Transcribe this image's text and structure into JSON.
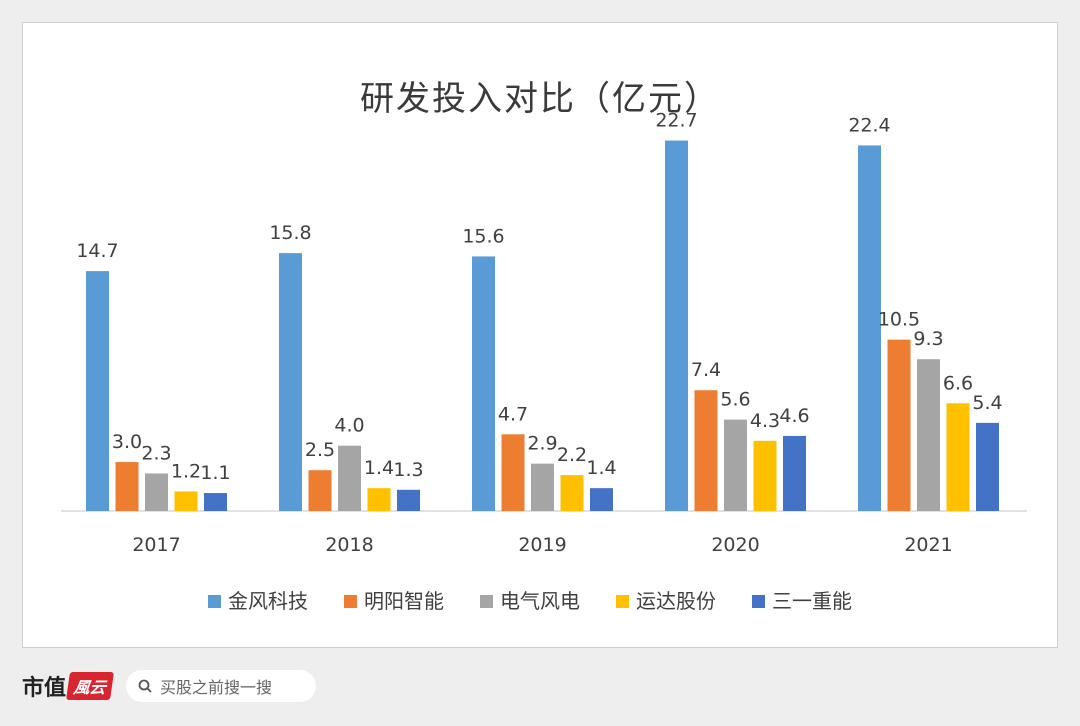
{
  "colors": {
    "金风科技": "#5b9bd5",
    "明阳智能": "#ed7d31",
    "电气风电": "#a5a5a5",
    "运达股份": "#ffc000",
    "三一重能": "#4472c4"
  },
  "footer": {
    "brand": "市值",
    "logo": "風云",
    "search_placeholder": "买股之前搜一搜"
  },
  "chart_data": {
    "type": "bar",
    "title": "研发投入对比（亿元）",
    "categories": [
      "2017",
      "2018",
      "2019",
      "2020",
      "2021"
    ],
    "series": [
      {
        "name": "金风科技",
        "values": [
          14.7,
          15.8,
          15.6,
          22.7,
          22.4
        ]
      },
      {
        "name": "明阳智能",
        "values": [
          3.0,
          2.5,
          4.7,
          7.4,
          10.5
        ]
      },
      {
        "name": "电气风电",
        "values": [
          2.3,
          4.0,
          2.9,
          5.6,
          9.3
        ]
      },
      {
        "name": "运达股份",
        "values": [
          1.2,
          1.4,
          2.2,
          4.3,
          6.6
        ]
      },
      {
        "name": "三一重能",
        "values": [
          1.1,
          1.3,
          1.4,
          4.6,
          5.4
        ]
      }
    ],
    "ylim": [
      0,
      25
    ],
    "grid": false,
    "legend": "bottom"
  }
}
